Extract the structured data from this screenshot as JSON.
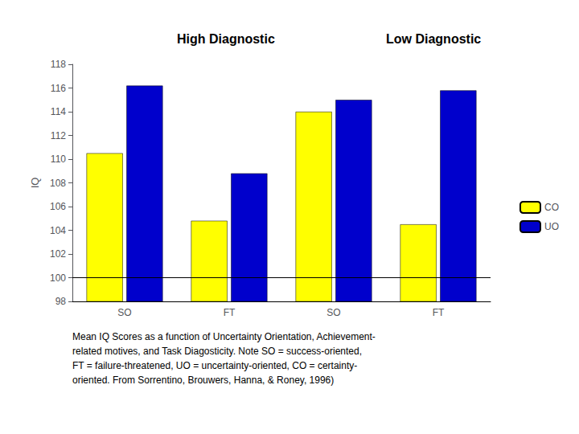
{
  "chart_data": {
    "type": "bar",
    "annotations": [
      "High Diagnostic",
      "Low Diagnostic"
    ],
    "ylabel": "IQ",
    "categories": [
      "SO",
      "FT",
      "SO",
      "FT"
    ],
    "series": [
      {
        "name": "CO",
        "color": "#FFFF00",
        "values": [
          110.5,
          104.8,
          114.0,
          104.5
        ]
      },
      {
        "name": "UO",
        "color": "#0000CC",
        "values": [
          116.2,
          108.8,
          115.0,
          115.8
        ]
      }
    ],
    "ylim": [
      98,
      118
    ],
    "yticks": [
      98,
      100,
      102,
      104,
      106,
      108,
      110,
      112,
      114,
      116,
      118
    ],
    "hline": 100,
    "grid": false,
    "legend": "right",
    "caption": "Mean IQ Scores as a function of Uncertainty Orientation, Achievement-\nrelated motives, and Task Diagosticity. Note SO = success-oriented,\nFT = failure-threatened, UO = uncertainty-oriented, CO = certainty-\noriented. From Sorrentino, Brouwers, Hanna, & Roney, 1996)"
  }
}
